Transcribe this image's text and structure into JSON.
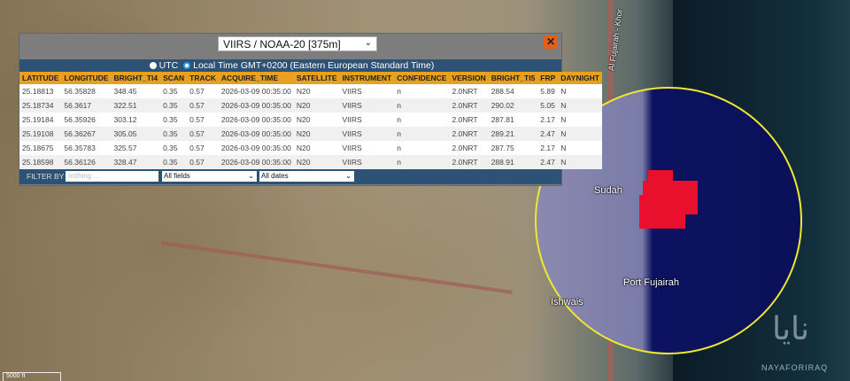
{
  "map": {
    "labels": {
      "road": "Al Fujairah - Khor",
      "sudah": "Sudah",
      "port": "Port Fujairah",
      "ishwais": "Ishwais"
    },
    "scale": "5000 ft",
    "watermark": "NAYAFORIRAQ",
    "watermark_arabic": "نايا",
    "colors": {
      "circle": "#f0e830",
      "fire": "#e8102c"
    }
  },
  "panel": {
    "dataset_select": "VIIRS / NOAA-20 [375m]",
    "close_icon": "close-icon",
    "time": {
      "utc": "UTC",
      "local": "Local Time GMT+0200 (Eastern European Standard Time)",
      "selected": "local"
    },
    "columns": [
      "LATITUDE",
      "LONGITUDE",
      "BRIGHT_TI4",
      "SCAN",
      "TRACK",
      "ACQUIRE_TIME",
      "SATELLITE",
      "INSTRUMENT",
      "CONFIDENCE",
      "VERSION",
      "BRIGHT_TI5",
      "FRP",
      "DAYNIGHT"
    ],
    "rows": [
      [
        "25.18813",
        "56.35828",
        "348.45",
        "0.35",
        "0.57",
        "2026-03-09 00:35:00",
        "N20",
        "VIIRS",
        "n",
        "2.0NRT",
        "288.54",
        "5.89",
        "N"
      ],
      [
        "25.18734",
        "56.3617",
        "322.51",
        "0.35",
        "0.57",
        "2026-03-09 00:35:00",
        "N20",
        "VIIRS",
        "n",
        "2.0NRT",
        "290.02",
        "5.05",
        "N"
      ],
      [
        "25.19184",
        "56.35926",
        "303.12",
        "0.35",
        "0.57",
        "2026-03-09 00:35:00",
        "N20",
        "VIIRS",
        "n",
        "2.0NRT",
        "287.81",
        "2.17",
        "N"
      ],
      [
        "25.19108",
        "56.36267",
        "305.05",
        "0.35",
        "0.57",
        "2026-03-09 00:35:00",
        "N20",
        "VIIRS",
        "n",
        "2.0NRT",
        "289.21",
        "2.47",
        "N"
      ],
      [
        "25.18675",
        "56.35783",
        "325.57",
        "0.35",
        "0.57",
        "2026-03-09 00:35:00",
        "N20",
        "VIIRS",
        "n",
        "2.0NRT",
        "287.75",
        "2.17",
        "N"
      ],
      [
        "25.18598",
        "56.36126",
        "328.47",
        "0.35",
        "0.57",
        "2026-03-09 00:35:00",
        "N20",
        "VIIRS",
        "n",
        "2.0NRT",
        "288.91",
        "2.47",
        "N"
      ]
    ],
    "filter": {
      "label": "FILTER BY",
      "placeholder": "nothing ...",
      "fields": "All fields",
      "dates": "All dates"
    }
  }
}
